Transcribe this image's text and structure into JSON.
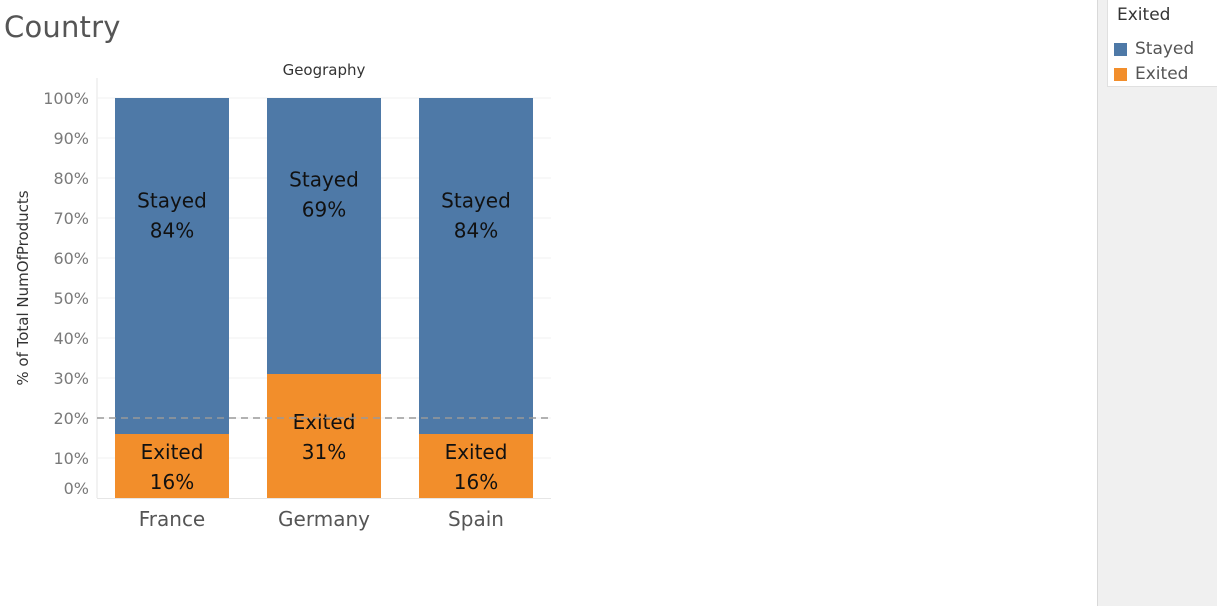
{
  "sheet": {
    "title": "Country"
  },
  "legend": {
    "title": "Exited",
    "items": [
      {
        "label": "Stayed",
        "color": "#4e79a7"
      },
      {
        "label": "Exited",
        "color": "#f28e2b"
      }
    ]
  },
  "chart_data": {
    "type": "bar",
    "stacked": true,
    "title": "Geography",
    "ylabel": "% of Total NumOfProducts",
    "xlabel": "",
    "categories": [
      "France",
      "Germany",
      "Spain"
    ],
    "series": [
      {
        "name": "Exited",
        "values": [
          16,
          31,
          16
        ],
        "labels": [
          "16%",
          "31%",
          "16%"
        ],
        "color": "#f28e2b"
      },
      {
        "name": "Stayed",
        "values": [
          84,
          69,
          84
        ],
        "labels": [
          "84%",
          "69%",
          "84%"
        ],
        "color": "#4e79a7"
      }
    ],
    "ylim": [
      0,
      100
    ],
    "yticks": [
      "0%",
      "10%",
      "20%",
      "30%",
      "40%",
      "50%",
      "60%",
      "70%",
      "80%",
      "90%",
      "100%"
    ],
    "reference_line": {
      "value": 20,
      "style": "dashed",
      "color": "#999999"
    },
    "grid": true
  }
}
